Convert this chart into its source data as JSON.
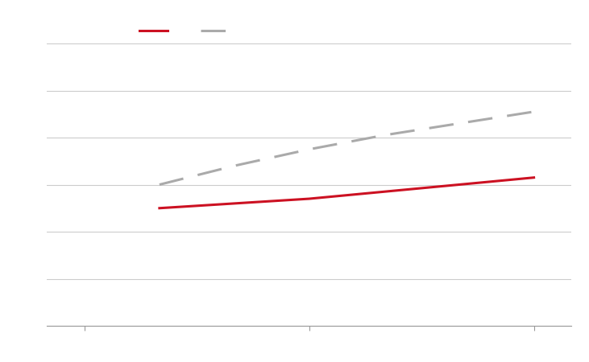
{
  "background_color": "#ffffff",
  "plot_bg_color": "#ffffff",
  "grid_color": "#cccccc",
  "spine_color": "#999999",
  "tick_label_color": "#ffffff",
  "line1_label": "",
  "line1_color": "#cc1122",
  "line1_x": [
    2010,
    2020,
    2030,
    2040,
    2050,
    2060
  ],
  "line1_y": [
    2.5,
    2.6,
    2.7,
    2.85,
    3.0,
    3.15
  ],
  "line1_linewidth": 2.2,
  "line1_style": "solid",
  "line2_label": "",
  "line2_color": "#aaaaaa",
  "line2_x": [
    2010,
    2020,
    2030,
    2040,
    2050,
    2060
  ],
  "line2_y": [
    3.0,
    3.4,
    3.75,
    4.05,
    4.3,
    4.55
  ],
  "line2_linewidth": 2.2,
  "line2_dashes": [
    10,
    6
  ],
  "xlim": [
    1995,
    2065
  ],
  "ylim": [
    0,
    6
  ],
  "xticks": [
    2000,
    2030,
    2060
  ],
  "yticks": [
    0,
    1,
    2,
    3,
    4,
    5,
    6
  ],
  "legend_ncol": 2,
  "legend_fontsize": 9,
  "legend_handle_color1": "#cc1122",
  "legend_handle_color2": "#aaaaaa",
  "figsize": [
    7.31,
    4.5
  ],
  "dpi": 100
}
